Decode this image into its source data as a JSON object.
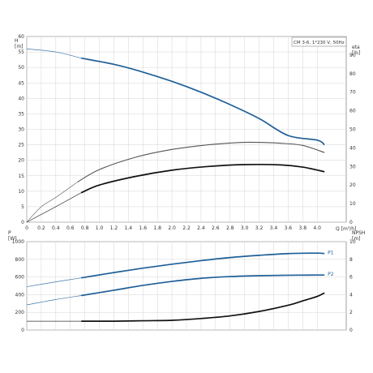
{
  "colors": {
    "pump_curve": "#1f5f98",
    "black_curve": "#111111",
    "gray_curve": "#555555",
    "grid": "#d4d4d4",
    "axis": "#888888"
  },
  "chart_data": [
    {
      "type": "line",
      "panel": "top",
      "legend_box": "CM 3-6, 1*230 V, 50Hz",
      "xlabel": "Q [m³/h]",
      "ylabel_left": "H\n[m]",
      "ylabel_right": "eta\n[%]",
      "xlim": [
        0,
        4.4
      ],
      "x_ticks": [
        "0",
        "0.2",
        "0.4",
        "0.6",
        "0.8",
        "1.0",
        "1.2",
        "1.4",
        "1.6",
        "1.8",
        "2.0",
        "2.2",
        "2.4",
        "2.6",
        "2.8",
        "3.0",
        "3.2",
        "3.4",
        "3.6",
        "3.8",
        "4.0"
      ],
      "ylim_left": [
        0,
        60
      ],
      "y_ticks_left": [
        "0",
        "5",
        "10",
        "15",
        "20",
        "25",
        "30",
        "35",
        "40",
        "45",
        "50",
        "55",
        "60"
      ],
      "ylim_right": [
        0,
        100
      ],
      "y_ticks_right": [
        "0",
        "10",
        "20",
        "30",
        "40",
        "50",
        "60",
        "70",
        "80",
        "90"
      ],
      "grid": true,
      "series": [
        {
          "axis": "left",
          "color_key": "pump_curve",
          "thin_until": 0.75,
          "x": [
            0,
            0.4,
            0.75,
            1.2,
            1.6,
            2.0,
            2.4,
            2.8,
            3.2,
            3.6,
            4.0,
            4.1
          ],
          "y": [
            56,
            55,
            53,
            51,
            48.5,
            45.5,
            42,
            38,
            33.5,
            28,
            26.5,
            25
          ]
        },
        {
          "axis": "left",
          "color_key": "gray_curve",
          "thin_until": 0.7,
          "x": [
            0,
            0.2,
            0.4,
            0.7,
            1.0,
            1.5,
            2.0,
            2.5,
            3.0,
            3.5,
            3.8,
            4.1
          ],
          "y": [
            0,
            5,
            8,
            13,
            17,
            21,
            23.5,
            25,
            25.8,
            25.5,
            24.8,
            22.5
          ]
        },
        {
          "axis": "left",
          "color_key": "black_curve",
          "thin_until": 0.75,
          "x": [
            0,
            0.2,
            0.4,
            0.75,
            1.0,
            1.5,
            2.0,
            2.5,
            3.0,
            3.5,
            3.8,
            4.1
          ],
          "y": [
            0,
            2.5,
            5,
            9.5,
            12,
            14.8,
            16.8,
            18,
            18.6,
            18.5,
            17.8,
            16.3
          ]
        }
      ]
    },
    {
      "type": "line",
      "panel": "bottom",
      "ylabel_left": "P\n[W]",
      "ylabel_right": "NPSH\n[m]",
      "xlim": [
        0,
        4.4
      ],
      "ylim_left": [
        0,
        1000
      ],
      "y_ticks_left": [
        "0",
        "200",
        "400",
        "600",
        "800",
        "1000"
      ],
      "ylim_right": [
        0,
        10
      ],
      "y_ticks_right": [
        "0",
        "2",
        "4",
        "6",
        "8",
        "10"
      ],
      "grid": true,
      "series": [
        {
          "name": "P1",
          "axis": "left",
          "color_key": "pump_curve",
          "thin_until": 0.75,
          "x": [
            0,
            0.4,
            0.75,
            1.2,
            1.6,
            2.0,
            2.4,
            2.8,
            3.2,
            3.6,
            4.0,
            4.1
          ],
          "y": [
            490,
            545,
            590,
            650,
            700,
            745,
            785,
            820,
            845,
            865,
            870,
            865
          ]
        },
        {
          "name": "P2",
          "axis": "left",
          "color_key": "pump_curve",
          "thin_until": 0.75,
          "x": [
            0,
            0.4,
            0.75,
            1.2,
            1.6,
            2.0,
            2.4,
            2.8,
            3.2,
            3.6,
            4.0,
            4.1
          ],
          "y": [
            285,
            345,
            390,
            450,
            505,
            550,
            585,
            605,
            615,
            620,
            622,
            622
          ]
        },
        {
          "axis": "right",
          "color_key": "black_curve",
          "thin_until": 0.75,
          "x": [
            0,
            0.4,
            0.75,
            1.2,
            1.6,
            2.0,
            2.4,
            2.8,
            3.2,
            3.6,
            3.8,
            4.0,
            4.1
          ],
          "y": [
            1.0,
            1.0,
            1.0,
            1.0,
            1.05,
            1.1,
            1.3,
            1.6,
            2.1,
            2.8,
            3.3,
            3.8,
            4.2
          ]
        }
      ]
    }
  ]
}
